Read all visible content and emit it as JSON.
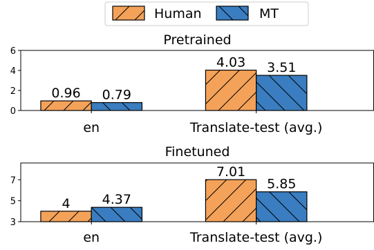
{
  "legend": {
    "placement": "top-center",
    "entries": [
      {
        "label": "Human",
        "color": "#F4A259",
        "hatch": "forward-diagonal"
      },
      {
        "label": "MT",
        "color": "#3A7DC0",
        "hatch": "back-diagonal"
      }
    ]
  },
  "chart_data": [
    {
      "type": "bar",
      "title": "Pretrained",
      "categories": [
        "en",
        "Translate-test (avg.)"
      ],
      "series": [
        {
          "name": "Human",
          "values": [
            0.96,
            4.03
          ],
          "labels": [
            "0.96",
            "4.03"
          ]
        },
        {
          "name": "MT",
          "values": [
            0.79,
            3.51
          ],
          "labels": [
            "0.79",
            "3.51"
          ]
        }
      ],
      "xlabel": "",
      "ylabel": "",
      "ylim": [
        0,
        6
      ],
      "yticks": [
        "0",
        "2",
        "4",
        "6"
      ],
      "grid": false
    },
    {
      "type": "bar",
      "title": "Finetuned",
      "categories": [
        "en",
        "Translate-test (avg.)"
      ],
      "series": [
        {
          "name": "Human",
          "values": [
            4.0,
            7.01
          ],
          "labels": [
            "4",
            "7.01"
          ]
        },
        {
          "name": "MT",
          "values": [
            4.37,
            5.85
          ],
          "labels": [
            "4.37",
            "5.85"
          ]
        }
      ],
      "xlabel": "",
      "ylabel": "",
      "ylim": [
        3,
        8.6
      ],
      "yticks": [
        "3",
        "5",
        "7"
      ],
      "grid": false
    }
  ]
}
